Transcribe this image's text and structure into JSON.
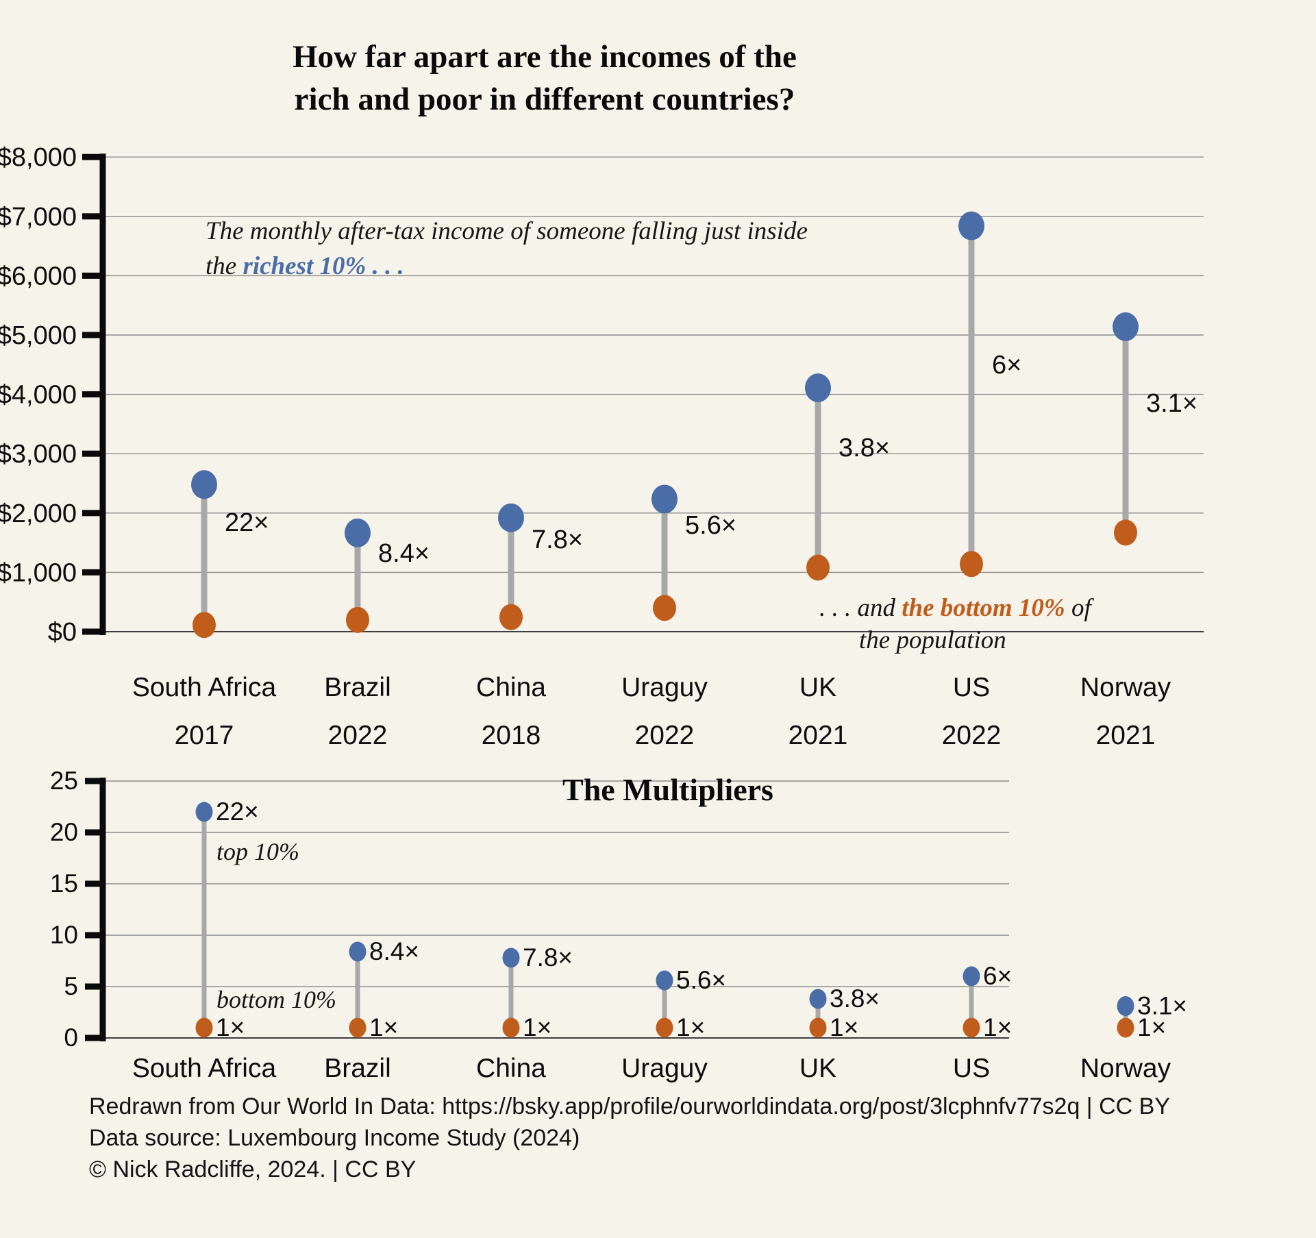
{
  "title": {
    "line1": "How far apart are the incomes of the",
    "line2": "rich and poor in different countries?"
  },
  "annotations": {
    "rich": {
      "line1": "The monthly after-tax income of someone falling just inside",
      "line2_prefix": "the ",
      "line2_highlight": "richest 10% . . ."
    },
    "poor": {
      "line1_prefix": ". . . and ",
      "line1_highlight": "the bottom 10%",
      "line1_suffix": " of",
      "line2": "the population"
    },
    "top10": "top 10%",
    "bottom10": "bottom 10%"
  },
  "top_chart": {
    "y_tick_labels": [
      "$0",
      "$1,000",
      "$2,000",
      "$3,000",
      "$4,000",
      "$5,000",
      "$6,000",
      "$7,000",
      "$8,000"
    ]
  },
  "multiplier_chart": {
    "title": "The Multipliers",
    "y_tick_labels": [
      "0",
      "5",
      "10",
      "15",
      "20",
      "25"
    ],
    "baseline_label": "1×"
  },
  "footer": {
    "line1": "Redrawn from Our World In Data: https://bsky.app/profile/ourworldindata.org/post/3lcphnfv77s2q | CC BY",
    "line2": "Data source: Luxembourg Income Study (2024)",
    "line3": "© Nick Radcliffe, 2024. | CC BY"
  },
  "colors": {
    "background": "#f6f3ea",
    "rich_blue": "#4a6da7",
    "poor_orange": "#c05d1d",
    "stem_gray": "#a8a8a8",
    "grid_gray": "#8c8c8c",
    "axis_black": "#0a0a0a"
  },
  "chart_data": [
    {
      "type": "dumbbell",
      "title": "How far apart are the incomes of the rich and poor in different countries?",
      "categories": [
        "South Africa",
        "Brazil",
        "China",
        "Uraguy",
        "UK",
        "US",
        "Norway"
      ],
      "years": [
        "2017",
        "2022",
        "2018",
        "2022",
        "2021",
        "2022",
        "2021"
      ],
      "series": [
        {
          "name": "richest 10% monthly after-tax income (USD)",
          "values": [
            2480,
            1665,
            1920,
            2235,
            4110,
            6840,
            5140
          ]
        },
        {
          "name": "bottom 10% monthly after-tax income (USD)",
          "values": [
            113,
            198,
            246,
            400,
            1080,
            1140,
            1670
          ]
        }
      ],
      "multiplier_labels": [
        "22×",
        "8.4×",
        "7.8×",
        "5.6×",
        "3.8×",
        "6×",
        "3.1×"
      ],
      "ylabel": "monthly after-tax income (USD)",
      "ylim": [
        0,
        8000
      ],
      "y_tick_step": 1000,
      "grid": true,
      "legend_position": "annotations-inline"
    },
    {
      "type": "dumbbell",
      "title": "The Multipliers",
      "categories": [
        "South Africa",
        "Brazil",
        "China",
        "Uraguy",
        "UK",
        "US",
        "Norway"
      ],
      "series": [
        {
          "name": "top 10%",
          "values": [
            22,
            8.4,
            7.8,
            5.6,
            3.8,
            6,
            3.1
          ]
        },
        {
          "name": "bottom 10%",
          "values": [
            1,
            1,
            1,
            1,
            1,
            1,
            1
          ]
        }
      ],
      "multiplier_labels": [
        "22×",
        "8.4×",
        "7.8×",
        "5.6×",
        "3.8×",
        "6×",
        "3.1×"
      ],
      "ylim": [
        0,
        25
      ],
      "y_tick_step": 5,
      "grid": true
    }
  ]
}
